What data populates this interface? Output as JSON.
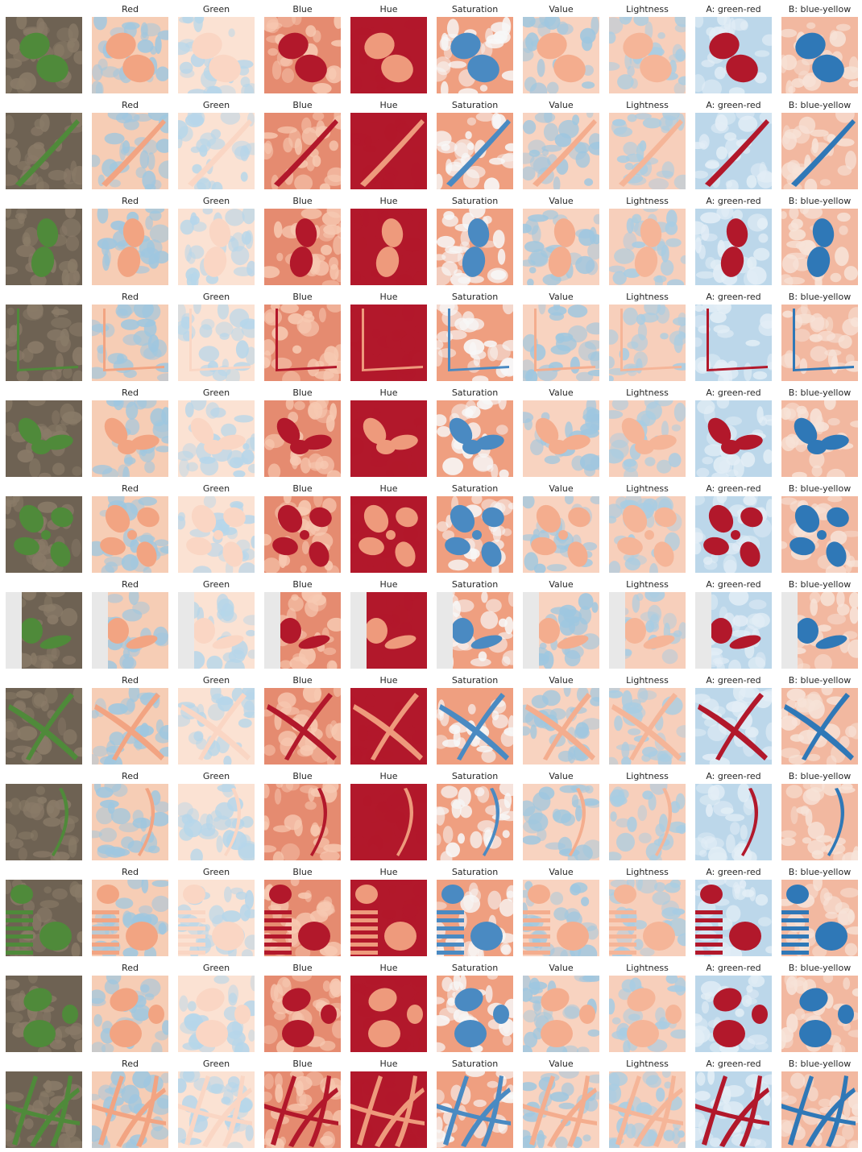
{
  "channels": [
    "Red",
    "Green",
    "Blue",
    "Hue",
    "Saturation",
    "Value",
    "Lightness",
    "A: green-red",
    "B: blue-yellow"
  ],
  "rows": [
    {
      "scene": "two-oval-leaves"
    },
    {
      "scene": "thin-diagonal-blade-with-label"
    },
    {
      "scene": "two-oval-leaves-vertical"
    },
    {
      "scene": "pot-edge-with-thin-stem"
    },
    {
      "scene": "small-three-leaf-seedling"
    },
    {
      "scene": "multi-leaf-rosette"
    },
    {
      "scene": "seedling-with-white-label"
    },
    {
      "scene": "crossed-grass-blades"
    },
    {
      "scene": "thin-curved-stem"
    },
    {
      "scene": "round-leaf-with-striped-label"
    },
    {
      "scene": "broad-leaf-seedling-with-round-leaf"
    },
    {
      "scene": "many-grass-blades"
    }
  ],
  "colors": {
    "colormap": "RdBu_r",
    "red": "#b2182b",
    "light_red": "#f4a582",
    "white": "#f7f7f7",
    "light_blue": "#92c5de",
    "blue": "#2166ac",
    "photo_soil": "#6e6253",
    "photo_leaf": "#4f8a3a"
  }
}
